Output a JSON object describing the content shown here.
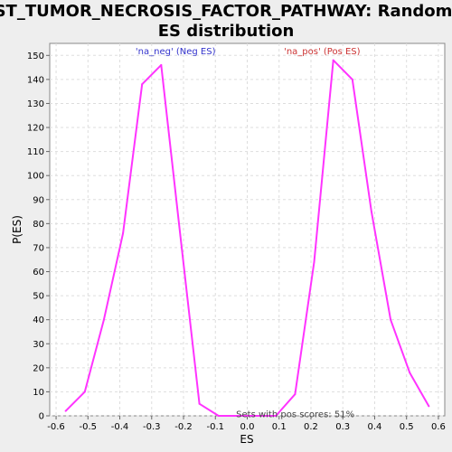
{
  "chart_data": {
    "type": "line",
    "title_line1": "ST_TUMOR_NECROSIS_FACTOR_PATHWAY: Random",
    "title_line2": "ES distribution",
    "xlabel": "ES",
    "ylabel": "P(ES)",
    "xlim": [
      -0.62,
      0.62
    ],
    "ylim": [
      0,
      155
    ],
    "x_ticks": [
      -0.6,
      -0.5,
      -0.4,
      -0.3,
      -0.2,
      -0.1,
      0.0,
      0.1,
      0.2,
      0.3,
      0.4,
      0.5,
      0.6
    ],
    "x_tick_labels": [
      "-0.6",
      "-0.5",
      "-0.4",
      "-0.3",
      "-0.2",
      "-0.1",
      "0.0",
      "0.1",
      "0.2",
      "0.3",
      "0.4",
      "0.5",
      "0.6"
    ],
    "y_ticks": [
      0,
      10,
      20,
      30,
      40,
      50,
      60,
      70,
      80,
      90,
      100,
      110,
      120,
      130,
      140,
      150
    ],
    "y_tick_labels": [
      "0",
      "10",
      "20",
      "30",
      "40",
      "50",
      "60",
      "70",
      "80",
      "90",
      "100",
      "110",
      "120",
      "130",
      "140",
      "150"
    ],
    "grid": true,
    "line_color": "#ff33ff",
    "series": [
      {
        "x": [
          -0.57,
          -0.51,
          -0.45,
          -0.39,
          -0.33,
          -0.27,
          -0.21,
          -0.15,
          -0.09,
          -0.03,
          0.03,
          0.09,
          0.15,
          0.21,
          0.27,
          0.33,
          0.39,
          0.45,
          0.51,
          0.57
        ],
        "y": [
          2,
          10,
          40,
          76,
          138,
          146,
          75,
          5,
          0,
          0,
          0,
          0,
          9,
          64,
          148,
          140,
          85,
          40,
          18,
          4
        ]
      }
    ],
    "annotations": [
      {
        "text": "'na_neg' (Neg ES)",
        "color": "#3333cc",
        "x": -0.225,
        "y": 152
      },
      {
        "text": "'na_pos' (Pos ES)",
        "color": "#cc3333",
        "x": 0.235,
        "y": 152
      },
      {
        "text": "Sets with pos scores: 51%",
        "color": "#444444",
        "x": -0.035,
        "y": 1
      }
    ]
  }
}
